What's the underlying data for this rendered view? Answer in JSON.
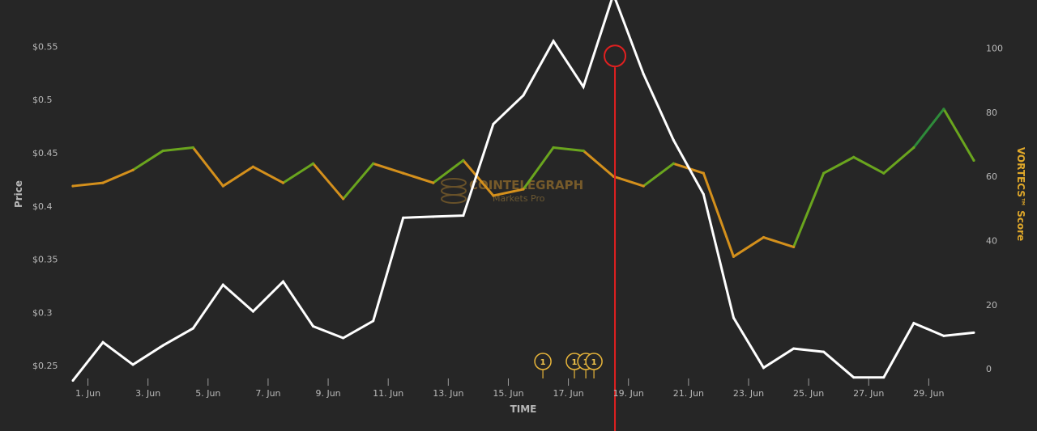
{
  "colors": {
    "background": "#262626",
    "price_line": "#ffffff",
    "score_green": "#6aa51e",
    "score_dark_green": "#2e8b3a",
    "score_orange": "#d4901c",
    "marker_red": "#e02020",
    "flag_gold": "#e8b53a",
    "tick_text": "#b8b8b8"
  },
  "watermark": {
    "brand": "COINTELEGRAPH",
    "sub": "Markets Pro",
    "icon": "coin-stack-icon"
  },
  "flags": [
    {
      "x": 16.15,
      "label": "1"
    },
    {
      "x": 17.2,
      "label": "1"
    },
    {
      "x": 17.58,
      "label": "1"
    },
    {
      "x": 17.85,
      "label": "1"
    }
  ],
  "marker": {
    "x": 18.55,
    "price": 0.541
  },
  "chart_data": {
    "type": "line",
    "xlabel": "TIME",
    "x_tick_labels": [
      "1. Jun",
      "3. Jun",
      "5. Jun",
      "7. Jun",
      "9. Jun",
      "11. Jun",
      "13. Jun",
      "15. Jun",
      "17. Jun",
      "19. Jun",
      "21. Jun",
      "23. Jun",
      "25. Jun",
      "27. Jun",
      "29. Jun"
    ],
    "x_ticks": [
      1,
      3,
      5,
      7,
      9,
      11,
      13,
      15,
      17,
      19,
      21,
      23,
      25,
      27,
      29
    ],
    "xlim": [
      0.5,
      30.5
    ],
    "y_left": {
      "label": "Price",
      "ticks": [
        0.25,
        0.3,
        0.35,
        0.4,
        0.45,
        0.5,
        0.55
      ],
      "tick_labels": [
        "$0.25",
        "$0.3",
        "$0.35",
        "$0.4",
        "$0.45",
        "$0.5",
        "$0.55"
      ],
      "lim": [
        0.238,
        0.5875
      ]
    },
    "y_right": {
      "label": "VORTECS™ Score",
      "ticks": [
        0,
        20,
        40,
        60,
        80,
        100
      ],
      "tick_labels": [
        "0",
        "20",
        "40",
        "60",
        "80",
        "100"
      ],
      "lim": [
        -3,
        113
      ]
    },
    "series": [
      {
        "axis": "left",
        "x": [
          0.5,
          1.5,
          2.5,
          3.5,
          4.5,
          5.5,
          6.5,
          7.5,
          8.5,
          9.5,
          10.5,
          11.5,
          12.5,
          13.5,
          14.5,
          15.5,
          16.5,
          17.5,
          18.5,
          19.5,
          20.5,
          21.5,
          22.5,
          23.5,
          24.5,
          25.5,
          26.5,
          27.5,
          28.5,
          29.5,
          30.5
        ],
        "values": [
          0.236,
          0.272,
          0.251,
          0.269,
          0.285,
          0.326,
          0.301,
          0.329,
          0.287,
          0.276,
          0.292,
          0.389,
          0.39,
          0.391,
          0.477,
          0.504,
          0.555,
          0.512,
          0.599,
          0.524,
          0.462,
          0.411,
          0.295,
          0.248,
          0.266,
          0.263,
          0.239,
          0.239,
          0.29,
          0.278,
          0.281
        ]
      },
      {
        "axis": "right",
        "x": [
          0.5,
          1.5,
          2.5,
          3.5,
          4.5,
          5.5,
          6.5,
          7.5,
          8.5,
          9.5,
          10.5,
          11.5,
          12.5,
          13.5,
          14.5,
          15.5,
          16.5,
          17.5,
          18.5,
          19.5,
          20.5,
          21.5,
          22.5,
          23.5,
          24.5,
          25.5,
          26.5,
          27.5,
          28.5,
          29.5,
          30.5
        ],
        "values": [
          57,
          58,
          62,
          68,
          69,
          57,
          63,
          58,
          64,
          53,
          64,
          61,
          58,
          65,
          54,
          56,
          69,
          68,
          60,
          57,
          64,
          61,
          35,
          41,
          38,
          61,
          66,
          61,
          69,
          81,
          65
        ],
        "point_colors": [
          "orange",
          "orange",
          "orange",
          "green",
          "green",
          "orange",
          "orange",
          "orange",
          "green",
          "orange",
          "green",
          "orange",
          "orange",
          "green",
          "orange",
          "orange",
          "green",
          "green",
          "orange",
          "orange",
          "green",
          "orange",
          "orange",
          "orange",
          "orange",
          "green",
          "green",
          "green",
          "green",
          "dark_green",
          "green"
        ]
      }
    ]
  }
}
